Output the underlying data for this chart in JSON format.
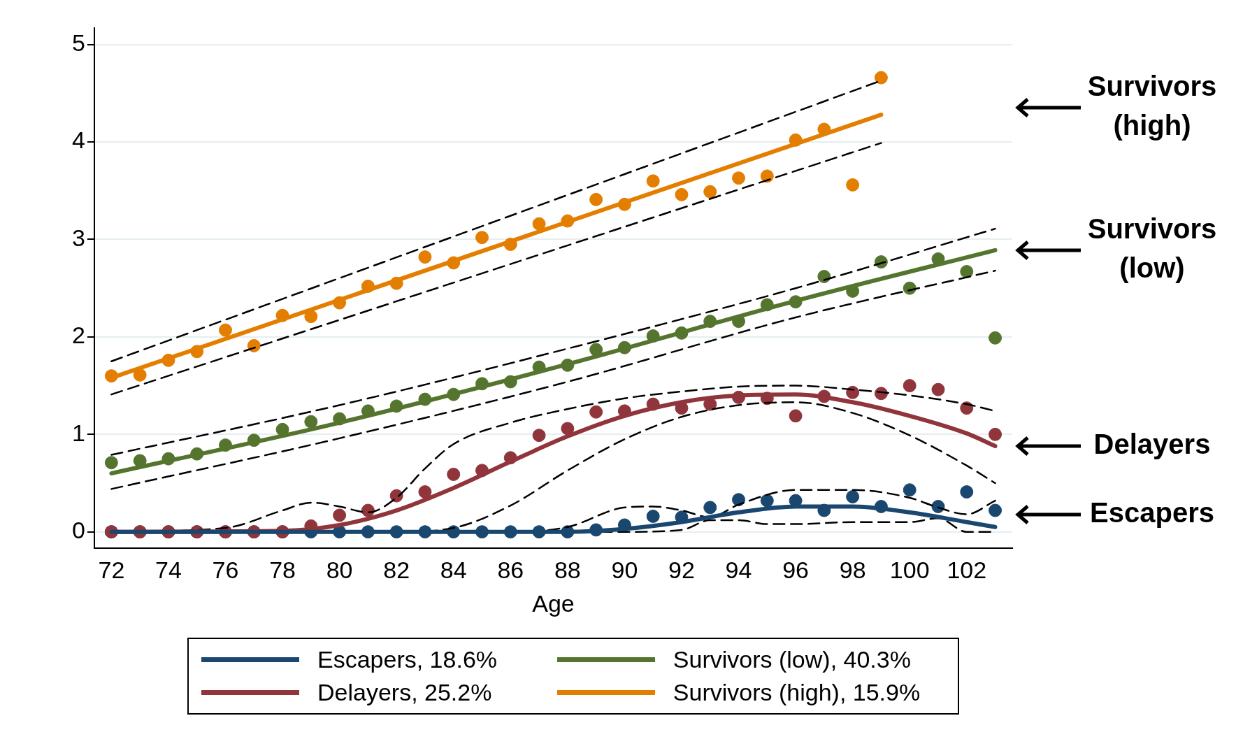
{
  "chart_data": {
    "type": "scatter",
    "xlabel": "Age",
    "x": [
      72,
      73,
      74,
      75,
      76,
      77,
      78,
      79,
      80,
      81,
      82,
      83,
      84,
      85,
      86,
      87,
      88,
      89,
      90,
      91,
      92,
      93,
      94,
      95,
      96,
      97,
      98,
      99,
      100,
      101,
      102,
      103
    ],
    "xlim": [
      71.4,
      103.6
    ],
    "ylim": [
      -0.17,
      5.17
    ],
    "xticks": [
      72,
      74,
      76,
      78,
      80,
      82,
      84,
      86,
      88,
      90,
      92,
      94,
      96,
      98,
      100,
      102
    ],
    "yticks": [
      0,
      1,
      2,
      3,
      4,
      5
    ],
    "grid": "y",
    "legend": "bottom",
    "series": [
      {
        "marker": "circle",
        "color": "#e37e00",
        "x": [
          72,
          73,
          74,
          75,
          76,
          77,
          78,
          79,
          80,
          81,
          82,
          83,
          84,
          85,
          86,
          87,
          88,
          89,
          90,
          91,
          92,
          93,
          94,
          95,
          96,
          97,
          98,
          99
        ],
        "values": [
          1.6,
          1.61,
          1.76,
          1.85,
          2.07,
          1.91,
          2.22,
          2.21,
          2.35,
          2.52,
          2.55,
          2.82,
          2.76,
          3.02,
          2.95,
          3.16,
          3.19,
          3.41,
          3.36,
          3.6,
          3.46,
          3.49,
          3.63,
          3.65,
          4.02,
          4.13,
          3.56,
          4.66
        ]
      },
      {
        "marker": "circle",
        "color": "#55752f",
        "values": [
          0.71,
          0.73,
          0.75,
          0.8,
          0.89,
          0.94,
          1.05,
          1.13,
          1.16,
          1.24,
          1.29,
          1.36,
          1.41,
          1.52,
          1.54,
          1.69,
          1.71,
          1.87,
          1.89,
          2.01,
          2.04,
          2.16,
          2.16,
          2.33,
          2.36,
          2.62,
          2.47,
          2.77,
          2.5,
          2.8,
          2.67,
          1.99
        ]
      },
      {
        "marker": "circle",
        "color": "#90353b",
        "values": [
          0,
          0,
          0,
          0,
          0,
          0,
          0,
          0.06,
          0.17,
          0.22,
          0.37,
          0.41,
          0.59,
          0.63,
          0.76,
          0.99,
          1.06,
          1.23,
          1.24,
          1.31,
          1.27,
          1.31,
          1.38,
          1.37,
          1.19,
          1.39,
          1.43,
          1.42,
          1.5,
          1.46,
          1.27,
          1.0
        ]
      },
      {
        "marker": "circle",
        "color": "#1a476f",
        "values": [
          0,
          0,
          0,
          0,
          0,
          0,
          0,
          0,
          0,
          0,
          0,
          0,
          0,
          0,
          0,
          0,
          0,
          0.02,
          0.07,
          0.16,
          0.15,
          0.25,
          0.33,
          0.32,
          0.32,
          0.22,
          0.36,
          0.26,
          0.43,
          0.26,
          0.41,
          0.22
        ]
      },
      {
        "type": "line",
        "color": "#000000",
        "line_style": "dashed",
        "x": [
          72,
          99
        ],
        "values": [
          1.75,
          4.63
        ]
      },
      {
        "type": "line",
        "color": "#000000",
        "line_style": "dashed",
        "x": [
          72,
          99
        ],
        "values": [
          1.41,
          3.99
        ]
      },
      {
        "type": "line",
        "color": "#000000",
        "line_style": "dashed",
        "x": [
          72,
          80,
          88,
          96,
          103
        ],
        "values": [
          0.79,
          1.3,
          1.88,
          2.5,
          3.11
        ]
      },
      {
        "type": "line",
        "color": "#000000",
        "line_style": "dashed",
        "x": [
          72,
          80,
          88,
          96,
          103
        ],
        "values": [
          0.44,
          0.96,
          1.54,
          2.2,
          2.68
        ]
      },
      {
        "type": "line",
        "color": "#000000",
        "line_style": "dashed",
        "x": [
          72,
          76,
          78,
          79,
          80,
          81,
          82,
          83,
          84,
          86,
          88,
          90,
          92,
          94,
          96,
          98,
          100,
          102,
          103
        ],
        "values": [
          0,
          0.04,
          0.22,
          0.3,
          0.26,
          0.2,
          0.35,
          0.65,
          0.9,
          1.12,
          1.26,
          1.37,
          1.44,
          1.49,
          1.5,
          1.46,
          1.4,
          1.31,
          1.24
        ]
      },
      {
        "type": "line",
        "color": "#000000",
        "line_style": "dashed",
        "x": [
          72,
          82,
          84,
          86,
          88,
          90,
          92,
          94,
          96,
          98,
          100,
          102,
          103
        ],
        "values": [
          0,
          0,
          0.04,
          0.27,
          0.63,
          0.95,
          1.18,
          1.3,
          1.33,
          1.22,
          0.99,
          0.68,
          0.5
        ]
      },
      {
        "type": "line",
        "color": "#000000",
        "line_style": "dashed",
        "x": [
          72,
          86,
          88,
          90,
          91,
          92,
          93,
          94,
          96,
          98,
          100,
          101,
          102,
          103
        ],
        "values": [
          0,
          0,
          0.05,
          0.25,
          0.26,
          0.22,
          0.15,
          0.28,
          0.43,
          0.43,
          0.35,
          0.25,
          0.18,
          0.32
        ]
      },
      {
        "type": "line",
        "color": "#000000",
        "line_style": "dashed",
        "x": [
          72,
          90,
          92,
          93,
          94,
          95,
          96,
          98,
          100,
          101,
          102,
          103
        ],
        "values": [
          0,
          0,
          0.02,
          0.12,
          0.12,
          0.08,
          0.08,
          0.1,
          0.1,
          0.14,
          0,
          0
        ]
      },
      {
        "type": "line",
        "name": "Escapers, 18.6%",
        "color": "#1a476f",
        "line_style": "solid",
        "x": [
          72,
          88,
          90,
          92,
          94,
          96,
          98,
          100,
          102,
          103
        ],
        "values": [
          0,
          0,
          0.03,
          0.1,
          0.2,
          0.26,
          0.26,
          0.2,
          0.1,
          0.05
        ]
      },
      {
        "type": "line",
        "name": "Delayers, 25.2%",
        "color": "#90353b",
        "line_style": "solid",
        "x": [
          72,
          78,
          80,
          82,
          84,
          86,
          88,
          90,
          92,
          94,
          96,
          98,
          100,
          102,
          103
        ],
        "values": [
          0,
          0.01,
          0.07,
          0.22,
          0.45,
          0.72,
          0.98,
          1.19,
          1.33,
          1.4,
          1.41,
          1.33,
          1.19,
          1.01,
          0.88
        ]
      },
      {
        "type": "line",
        "name": "Survivors (low), 40.3%",
        "color": "#55752f",
        "line_style": "solid",
        "x": [
          72,
          80,
          88,
          96,
          103
        ],
        "values": [
          0.6,
          1.12,
          1.72,
          2.37,
          2.89
        ]
      },
      {
        "type": "line",
        "name": "Survivors (high), 15.9%",
        "color": "#e37e00",
        "line_style": "solid",
        "x": [
          72,
          99
        ],
        "values": [
          1.58,
          4.28
        ]
      }
    ],
    "annotations": [
      "Survivors (high)",
      "Survivors (low)",
      "Delayers",
      "Escapers"
    ]
  }
}
